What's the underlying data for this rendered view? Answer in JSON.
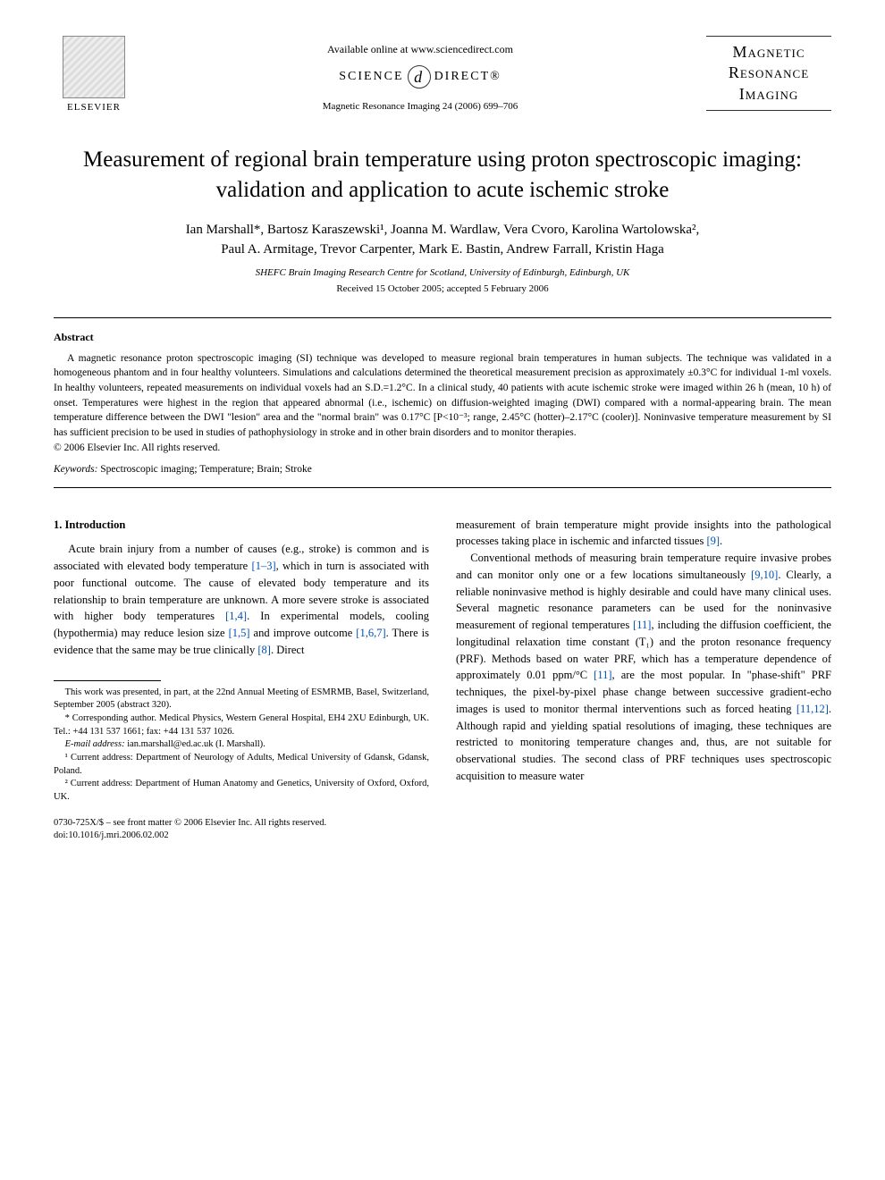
{
  "header": {
    "available": "Available online at www.sciencedirect.com",
    "sciencedirect_left": "SCIENCE",
    "sciencedirect_glyph": "d",
    "sciencedirect_right": "DIRECT®",
    "journal_ref": "Magnetic Resonance Imaging 24 (2006) 699–706",
    "elsevier": "ELSEVIER",
    "journal_logo_l1": "Magnetic",
    "journal_logo_l2": "Resonance",
    "journal_logo_l3": "Imaging"
  },
  "title": "Measurement of regional brain temperature using proton spectroscopic imaging: validation and application to acute ischemic stroke",
  "authors_line1": "Ian Marshall*, Bartosz Karaszewski¹, Joanna M. Wardlaw, Vera Cvoro, Karolina Wartolowska²,",
  "authors_line2": "Paul A. Armitage, Trevor Carpenter, Mark E. Bastin, Andrew Farrall, Kristin Haga",
  "affiliation": "SHEFC Brain Imaging Research Centre for Scotland, University of Edinburgh, Edinburgh, UK",
  "dates": "Received 15 October 2005; accepted 5 February 2006",
  "abstract": {
    "heading": "Abstract",
    "text": "A magnetic resonance proton spectroscopic imaging (SI) technique was developed to measure regional brain temperatures in human subjects. The technique was validated in a homogeneous phantom and in four healthy volunteers. Simulations and calculations determined the theoretical measurement precision as approximately ±0.3°C for individual 1-ml voxels. In healthy volunteers, repeated measurements on individual voxels had an S.D.=1.2°C. In a clinical study, 40 patients with acute ischemic stroke were imaged within 26 h (mean, 10 h) of onset. Temperatures were highest in the region that appeared abnormal (i.e., ischemic) on diffusion-weighted imaging (DWI) compared with a normal-appearing brain. The mean temperature difference between the DWI \"lesion\" area and the \"normal brain\" was 0.17°C [P<10⁻³; range, 2.45°C (hotter)–2.17°C (cooler)]. Noninvasive temperature measurement by SI has sufficient precision to be used in studies of pathophysiology in stroke and in other brain disorders and to monitor therapies.",
    "copyright": "© 2006 Elsevier Inc. All rights reserved."
  },
  "keywords": {
    "label": "Keywords:",
    "text": " Spectroscopic imaging; Temperature; Brain; Stroke"
  },
  "intro": {
    "heading": "1. Introduction",
    "p1a": "Acute brain injury from a number of causes (e.g., stroke) is common and is associated with elevated body temperature ",
    "r1": "[1–3]",
    "p1b": ", which in turn is associated with poor functional outcome. The cause of elevated body temperature and its relationship to brain temperature are unknown. A more severe stroke is associated with higher body temperatures ",
    "r2": "[1,4]",
    "p1c": ". In experimental models, cooling (hypothermia) may reduce lesion size ",
    "r3": "[1,5]",
    "p1d": " and improve outcome ",
    "r4": "[1,6,7]",
    "p1e": ". There is evidence that the same may be true clinically ",
    "r5": "[8]",
    "p1f": ". Direct ",
    "p2a": "measurement of brain temperature might provide insights into the pathological processes taking place in ischemic and infarcted tissues ",
    "r6": "[9]",
    "p2b": ".",
    "p3a": "Conventional methods of measuring brain temperature require invasive probes and can monitor only one or a few locations simultaneously ",
    "r7": "[9,10]",
    "p3b": ". Clearly, a reliable noninvasive method is highly desirable and could have many clinical uses. Several magnetic resonance parameters can be used for the noninvasive measurement of regional temperatures ",
    "r8": "[11]",
    "p3c": ", including the diffusion coefficient, the longitudinal relaxation time constant (T₁) and the proton resonance frequency (PRF). Methods based on water PRF, which has a temperature dependence of approximately 0.01 ppm/°C ",
    "r9": "[11]",
    "p3d": ", are the most popular. In \"phase-shift\" PRF techniques, the pixel-by-pixel phase change between successive gradient-echo images is used to monitor thermal interventions such as forced heating ",
    "r10": "[11,12]",
    "p3e": ". Although rapid and yielding spatial resolutions of imaging, these techniques are restricted to monitoring temperature changes and, thus, are not suitable for observational studies. The second class of PRF techniques uses spectroscopic acquisition to measure water"
  },
  "footnotes": {
    "f1": "This work was presented, in part, at the 22nd Annual Meeting of ESMRMB, Basel, Switzerland, September 2005 (abstract 320).",
    "f2": "* Corresponding author. Medical Physics, Western General Hospital, EH4 2XU Edinburgh, UK. Tel.: +44 131 537 1661; fax: +44 131 537 1026.",
    "f3_label": "E-mail address:",
    "f3_email": " ian.marshall@ed.ac.uk (I. Marshall).",
    "f4": "¹ Current address: Department of Neurology of Adults, Medical University of Gdansk, Gdansk, Poland.",
    "f5": "² Current address: Department of Human Anatomy and Genetics, University of Oxford, Oxford, UK."
  },
  "footer": {
    "line1": "0730-725X/$ – see front matter © 2006 Elsevier Inc. All rights reserved.",
    "line2": "doi:10.1016/j.mri.2006.02.002"
  }
}
